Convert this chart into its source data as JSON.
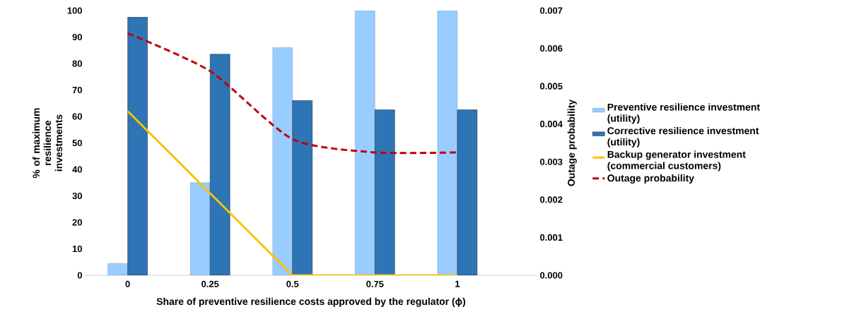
{
  "chart_data": {
    "type": "bar",
    "categories": [
      "0",
      "0.25",
      "0.5",
      "0.75",
      "1"
    ],
    "xlabel": "Share of preventive resilience costs approved by the regulator (ϕ)",
    "ylabel": "% of maximum resilience investments",
    "y2label": "Outage probability",
    "ylim": [
      0,
      100
    ],
    "yticks": [
      0,
      10,
      20,
      30,
      40,
      50,
      60,
      70,
      80,
      90,
      100
    ],
    "y2lim": [
      0,
      0.007
    ],
    "y2ticks": [
      {
        "value": 0,
        "label": "0.000"
      },
      {
        "value": 0.001,
        "label": "0.001"
      },
      {
        "value": 0.002,
        "label": "0.002"
      },
      {
        "value": 0.003,
        "label": "0.003"
      },
      {
        "value": 0.004,
        "label": "0.004"
      },
      {
        "value": 0.005,
        "label": "0.005"
      },
      {
        "value": 0.006,
        "label": "0.006"
      },
      {
        "value": 0.007,
        "label": "0.007"
      }
    ],
    "legend": "right",
    "series": [
      {
        "name": "Preventive resilience investment (utility)",
        "color": "#99ccff",
        "values": [
          4.5,
          35,
          86,
          100,
          100
        ]
      },
      {
        "name": "Corrective resilience investment (utility)",
        "color": "#2e75b6",
        "values": [
          97.5,
          83.5,
          66,
          62.5,
          62.5
        ]
      },
      {
        "name": "Backup generator investment (commercial customers)",
        "type": "line",
        "color": "#ffc000",
        "line_style": "solid",
        "values": [
          62,
          31,
          0,
          0,
          0
        ]
      },
      {
        "name": "Outage probability",
        "type": "line",
        "axis": "y2",
        "color": "#c00000",
        "line_style": "dashed",
        "values": [
          0.0064,
          0.0054,
          0.0036,
          0.00325,
          0.00325
        ]
      }
    ]
  }
}
